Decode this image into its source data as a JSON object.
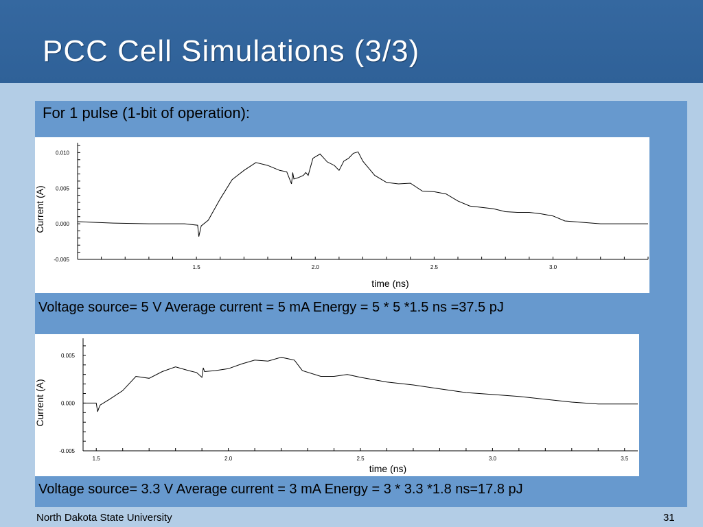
{
  "slide": {
    "title": "PCC Cell Simulations (3/3)",
    "subheading": "For 1 pulse (1-bit of operation):",
    "caption1": "Voltage source= 5 V    Average current = 5 mA    Energy = 5 * 5 *1.5 ns =37.5 pJ",
    "caption2": "Voltage source= 3.3 V   Average current = 3 mA     Energy = 3 * 3.3 *1.8 ns=17.8 pJ",
    "footer_left": "North Dakota State University",
    "page_number": "31"
  },
  "colors": {
    "title_bar": "#3568a0",
    "panel": "#6799ce",
    "background": "#b3cde6",
    "chart_bg": "#ffffff",
    "trace": "#000000"
  },
  "chart_data": [
    {
      "type": "line",
      "title": "",
      "xlabel": "time (ns)",
      "ylabel": "Current (A)",
      "xlim": [
        1.0,
        3.4
      ],
      "ylim": [
        -0.005,
        0.011
      ],
      "xticks": [
        "1.5",
        "2.0",
        "2.5",
        "3.0"
      ],
      "yticks": [
        "0.010",
        "0.005",
        "0.000",
        "-0.005"
      ],
      "series": [
        {
          "x": [
            1.0,
            1.15,
            1.3,
            1.45,
            1.505,
            1.51,
            1.52,
            1.55,
            1.6,
            1.65,
            1.7,
            1.75,
            1.8,
            1.85,
            1.88,
            1.9,
            1.905,
            1.91,
            1.93,
            1.95,
            1.96,
            1.97,
            1.99,
            2.02,
            2.05,
            2.08,
            2.1,
            2.12,
            2.14,
            2.16,
            2.18,
            2.2,
            2.25,
            2.3,
            2.35,
            2.4,
            2.45,
            2.5,
            2.55,
            2.6,
            2.65,
            2.7,
            2.75,
            2.8,
            2.85,
            2.9,
            2.95,
            3.0,
            3.05,
            3.2,
            3.4
          ],
          "y": [
            0.0003,
            0.0001,
            0.0,
            0.0,
            -0.0002,
            -0.0018,
            -0.0003,
            0.0005,
            0.0035,
            0.0062,
            0.0075,
            0.0086,
            0.0082,
            0.0075,
            0.0073,
            0.0056,
            0.0072,
            0.0063,
            0.0065,
            0.0068,
            0.0072,
            0.0068,
            0.0092,
            0.0098,
            0.0087,
            0.0082,
            0.0075,
            0.0088,
            0.0092,
            0.0099,
            0.0101,
            0.0088,
            0.0068,
            0.0058,
            0.0056,
            0.0057,
            0.0046,
            0.0045,
            0.0042,
            0.0032,
            0.0025,
            0.0023,
            0.0021,
            0.0017,
            0.0016,
            0.0016,
            0.0014,
            0.0011,
            0.0004,
            0.0,
            0.0
          ]
        }
      ]
    },
    {
      "type": "line",
      "title": "",
      "xlabel": "time (ns)",
      "ylabel": "Current (A)",
      "xlim": [
        1.45,
        3.55
      ],
      "ylim": [
        -0.005,
        0.0065
      ],
      "xticks": [
        "1.5",
        "2.0",
        "2.5",
        "3.0",
        "3.5"
      ],
      "yticks": [
        "0.005",
        "0.000",
        "-0.005"
      ],
      "series": [
        {
          "x": [
            1.45,
            1.5,
            1.505,
            1.51,
            1.515,
            1.55,
            1.6,
            1.65,
            1.7,
            1.75,
            1.8,
            1.85,
            1.88,
            1.9,
            1.905,
            1.91,
            1.95,
            2.0,
            2.05,
            2.1,
            2.15,
            2.2,
            2.25,
            2.28,
            2.35,
            2.4,
            2.45,
            2.5,
            2.6,
            2.7,
            2.8,
            2.9,
            3.0,
            3.1,
            3.2,
            3.3,
            3.4,
            3.55
          ],
          "y": [
            0.0,
            0.0,
            -0.0009,
            -0.0005,
            -0.0002,
            0.0004,
            0.0013,
            0.0028,
            0.0026,
            0.0033,
            0.0038,
            0.0034,
            0.0032,
            0.0027,
            0.0037,
            0.0033,
            0.0034,
            0.0036,
            0.0041,
            0.0045,
            0.0044,
            0.0048,
            0.0045,
            0.0034,
            0.0028,
            0.0028,
            0.003,
            0.0027,
            0.0022,
            0.0019,
            0.0015,
            0.0011,
            0.0009,
            0.0007,
            0.0004,
            0.0001,
            -0.0001,
            -0.0001
          ]
        }
      ]
    }
  ]
}
